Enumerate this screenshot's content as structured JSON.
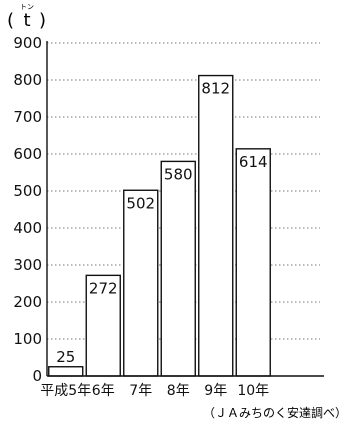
{
  "chart_data": {
    "type": "bar",
    "unit": "t",
    "unit_ruby": "トン",
    "categories": [
      "平成5年",
      "6年",
      "7年",
      "8年",
      "9年",
      "10年"
    ],
    "values": [
      25,
      272,
      502,
      580,
      812,
      614
    ],
    "ylim": [
      0,
      900
    ],
    "yticks": [
      0,
      100,
      200,
      300,
      400,
      500,
      600,
      700,
      800,
      900
    ],
    "grid": true,
    "source": "（ＪＡみちのく安達調べ）",
    "colors": {
      "bar_fill": "#ffffff",
      "bar_stroke": "#111111",
      "grid": "#777777",
      "text": "#111111"
    }
  }
}
